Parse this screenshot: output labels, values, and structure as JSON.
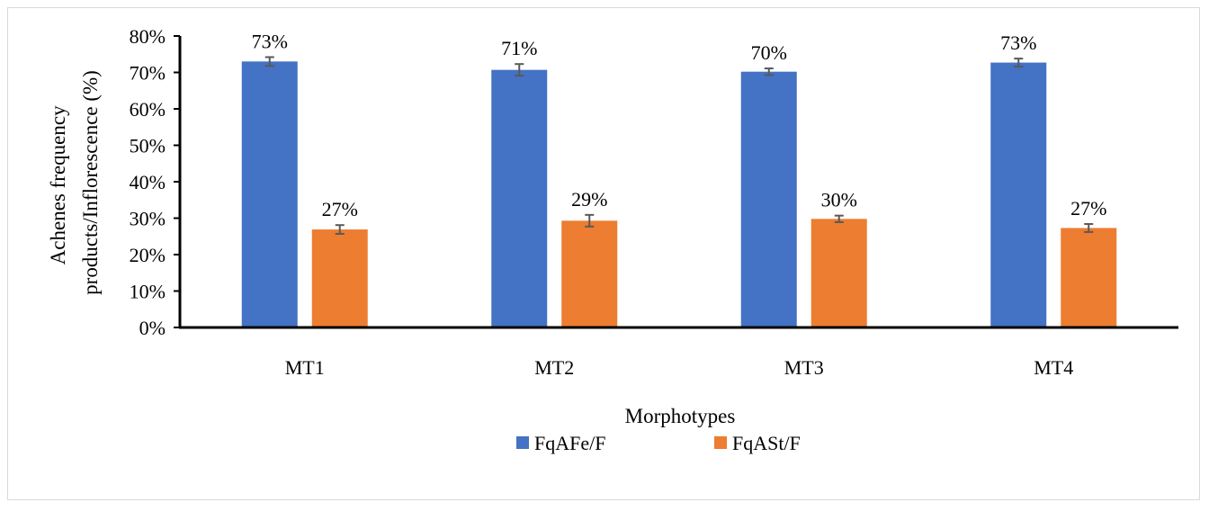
{
  "chart_data": {
    "type": "bar",
    "categories": [
      "MT1",
      "MT2",
      "MT3",
      "MT4"
    ],
    "series": [
      {
        "name": "FqAFe/F",
        "color": "#4472C4",
        "values": [
          73,
          70.7,
          70.2,
          72.7
        ],
        "labels": [
          "73%",
          "71%",
          "70%",
          "73%"
        ],
        "errors": [
          1.2,
          1.6,
          0.9,
          1.1
        ]
      },
      {
        "name": "FqASt/F",
        "color": "#ED7D31",
        "values": [
          26.9,
          29.3,
          29.8,
          27.3
        ],
        "labels": [
          "27%",
          "29%",
          "30%",
          "27%"
        ],
        "errors": [
          1.2,
          1.6,
          0.9,
          1.1
        ]
      }
    ],
    "yticks": [
      "0%",
      "10%",
      "20%",
      "30%",
      "40%",
      "50%",
      "60%",
      "70%",
      "80%"
    ],
    "ylim": [
      0,
      80
    ],
    "xlabel": "Morphotypes",
    "ylabel_lines": [
      "Achenes frequency",
      "products/Inflorescence  (%)"
    ],
    "legend_position": "bottom",
    "grid": false
  }
}
